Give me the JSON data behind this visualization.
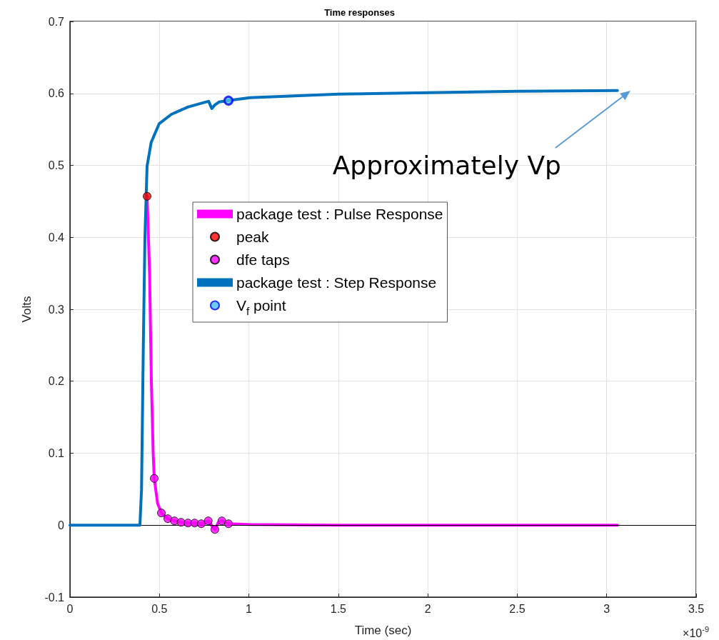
{
  "chart_data": {
    "type": "line",
    "title": "Time responses",
    "xlabel": "Time (sec)",
    "ylabel": "Volts",
    "xlim": [
      0,
      3.5
    ],
    "xticks": [
      0,
      0.5,
      1,
      1.5,
      2,
      2.5,
      3,
      3.5
    ],
    "ylim": [
      -0.1,
      0.7
    ],
    "yticks": [
      -0.1,
      0,
      0.1,
      0.2,
      0.3,
      0.4,
      0.5,
      0.6,
      0.7
    ],
    "grid": true,
    "legend": "center",
    "ref_lines": [
      {
        "axis": "y",
        "value": 0,
        "color": "#000000"
      }
    ],
    "annotations": [
      "×10$^{-9}$",
      "Approximately Vp"
    ],
    "series": [
      {
        "name": "package test : Pulse Response",
        "color": "#ff00ff",
        "marker": "none",
        "x": [
          0.431,
          0.445,
          0.455,
          0.465,
          0.471,
          0.49,
          0.511,
          0.547,
          0.584,
          0.621,
          0.66,
          0.697,
          0.734,
          0.773,
          0.79,
          0.81,
          0.83,
          0.849,
          0.886,
          1.0,
          1.5,
          2.0,
          2.5,
          3.06
        ],
        "values": [
          0.457,
          0.35,
          0.2,
          0.1,
          0.065,
          0.03,
          0.017,
          0.009,
          0.006,
          0.004,
          0.003,
          0.003,
          0.002,
          0.006,
          0,
          -0.006,
          0.004,
          0.006,
          0.002,
          0.001,
          0,
          0,
          0,
          0
        ]
      },
      {
        "name": "peak",
        "type": "scatter",
        "color": "#ff0000",
        "marker": "circle",
        "x": [
          0.431
        ],
        "values": [
          0.457
        ]
      },
      {
        "name": "dfe taps",
        "type": "scatter",
        "color": "#ff00ff",
        "marker": "circle",
        "x": [
          0.471,
          0.511,
          0.547,
          0.584,
          0.621,
          0.66,
          0.697,
          0.734,
          0.773,
          0.81,
          0.849,
          0.886
        ],
        "values": [
          0.065,
          0.017,
          0.009,
          0.006,
          0.004,
          0.003,
          0.003,
          0.002,
          0.006,
          -0.006,
          0.006,
          0.002
        ]
      },
      {
        "name": "package test : Step Response",
        "color": "#0072bd",
        "marker": "none",
        "x": [
          0,
          0.391,
          0.4,
          0.41,
          0.419,
          0.431,
          0.454,
          0.499,
          0.567,
          0.659,
          0.758,
          0.775,
          0.793,
          0.81,
          0.833,
          0.886,
          1.006,
          1.205,
          1.5,
          2.0,
          2.5,
          3.06
        ],
        "values": [
          0,
          0,
          0.05,
          0.25,
          0.4,
          0.499,
          0.532,
          0.558,
          0.571,
          0.581,
          0.588,
          0.589,
          0.579,
          0.584,
          0.588,
          0.59,
          0.594,
          0.596,
          0.599,
          0.601,
          0.603,
          0.604
        ]
      },
      {
        "name": "V$_{f}$ point",
        "type": "scatter",
        "color": "#4dbeee",
        "marker": "circle",
        "x": [
          0.886
        ],
        "values": [
          0.59
        ]
      }
    ]
  }
}
